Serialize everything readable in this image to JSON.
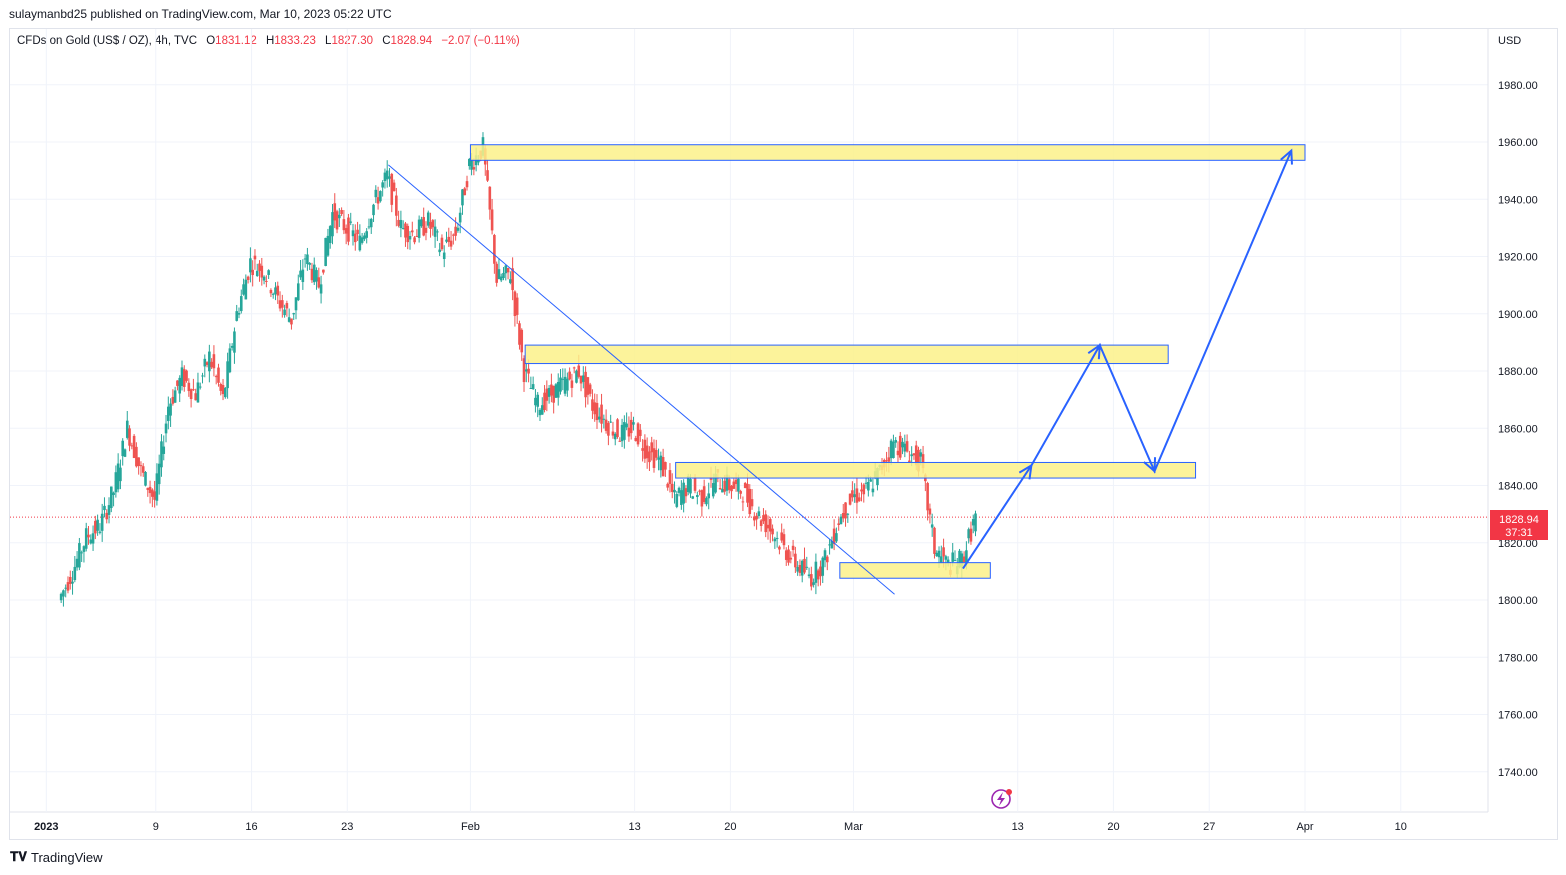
{
  "header": {
    "publisher_text": "sulaymanbd25 published on TradingView.com, Mar 10, 2023 05:22 UTC"
  },
  "legend": {
    "symbol": "CFDs on Gold (US$ / OZ), 4h, TVC",
    "open_label": "O",
    "open": "1831.12",
    "high_label": "H",
    "high": "1833.23",
    "low_label": "L",
    "low": "1827.30",
    "close_label": "C",
    "close": "1828.94",
    "change": "−2.07 (−0.11%)"
  },
  "price_axis": {
    "currency": "USD",
    "last_price": "1828.94",
    "countdown": "37:31"
  },
  "footer": {
    "brand": "TradingView"
  },
  "colors": {
    "up": "#26a69a",
    "down": "#ef5350",
    "zone_fill": "#fbf18a",
    "zone_border": "#2962ff",
    "line": "#2962ff",
    "price_label": "#f23645"
  },
  "chart_data": {
    "type": "candlestick",
    "symbol": "CFDs on Gold (US$ / OZ)",
    "interval": "4h",
    "ylim": [
      1725,
      1990
    ],
    "y_ticks": [
      1740,
      1760,
      1780,
      1800,
      1820,
      1840,
      1860,
      1880,
      1900,
      1920,
      1940,
      1960,
      1980
    ],
    "x_ticks": [
      "2023",
      "9",
      "16",
      "23",
      "Feb",
      "13",
      "20",
      "Mar",
      "13",
      "20",
      "27",
      "Apr",
      "10"
    ],
    "grid": true,
    "last_price": 1828.94,
    "price_path": [
      {
        "date": "2023-01-02",
        "p": 1800
      },
      {
        "date": "2023-01-03",
        "p": 1810
      },
      {
        "date": "2023-01-04",
        "p": 1822
      },
      {
        "date": "2023-01-05",
        "p": 1826
      },
      {
        "date": "2023-01-06",
        "p": 1838
      },
      {
        "date": "2023-01-07",
        "p": 1860
      },
      {
        "date": "2023-01-08",
        "p": 1845
      },
      {
        "date": "2023-01-09",
        "p": 1835
      },
      {
        "date": "2023-01-10",
        "p": 1868
      },
      {
        "date": "2023-01-11",
        "p": 1878
      },
      {
        "date": "2023-01-12",
        "p": 1872
      },
      {
        "date": "2023-01-13",
        "p": 1885
      },
      {
        "date": "2023-01-14",
        "p": 1870
      },
      {
        "date": "2023-01-15",
        "p": 1900
      },
      {
        "date": "2023-01-16",
        "p": 1918
      },
      {
        "date": "2023-01-17",
        "p": 1915
      },
      {
        "date": "2023-01-18",
        "p": 1905
      },
      {
        "date": "2023-01-19",
        "p": 1898
      },
      {
        "date": "2023-01-20",
        "p": 1920
      },
      {
        "date": "2023-01-21",
        "p": 1910
      },
      {
        "date": "2023-01-22",
        "p": 1935
      },
      {
        "date": "2023-01-23",
        "p": 1930
      },
      {
        "date": "2023-01-24",
        "p": 1925
      },
      {
        "date": "2023-01-25",
        "p": 1938
      },
      {
        "date": "2023-01-26",
        "p": 1948
      },
      {
        "date": "2023-01-27",
        "p": 1930
      },
      {
        "date": "2023-01-28",
        "p": 1928
      },
      {
        "date": "2023-01-29",
        "p": 1932
      },
      {
        "date": "2023-01-30",
        "p": 1922
      },
      {
        "date": "2023-01-31",
        "p": 1928
      },
      {
        "date": "2023-02-01",
        "p": 1952
      },
      {
        "date": "2023-02-02",
        "p": 1958
      },
      {
        "date": "2023-02-03",
        "p": 1912
      },
      {
        "date": "2023-02-04",
        "p": 1914
      },
      {
        "date": "2023-02-05",
        "p": 1880
      },
      {
        "date": "2023-02-06",
        "p": 1868
      },
      {
        "date": "2023-02-07",
        "p": 1872
      },
      {
        "date": "2023-02-08",
        "p": 1876
      },
      {
        "date": "2023-02-09",
        "p": 1880
      },
      {
        "date": "2023-02-10",
        "p": 1868
      },
      {
        "date": "2023-02-11",
        "p": 1862
      },
      {
        "date": "2023-02-12",
        "p": 1858
      },
      {
        "date": "2023-02-13",
        "p": 1860
      },
      {
        "date": "2023-02-14",
        "p": 1852
      },
      {
        "date": "2023-02-15",
        "p": 1848
      },
      {
        "date": "2023-02-16",
        "p": 1835
      },
      {
        "date": "2023-02-17",
        "p": 1840
      },
      {
        "date": "2023-02-18",
        "p": 1836
      },
      {
        "date": "2023-02-19",
        "p": 1842
      },
      {
        "date": "2023-02-20",
        "p": 1840
      },
      {
        "date": "2023-02-21",
        "p": 1838
      },
      {
        "date": "2023-02-22",
        "p": 1830
      },
      {
        "date": "2023-02-23",
        "p": 1825
      },
      {
        "date": "2023-02-24",
        "p": 1818
      },
      {
        "date": "2023-02-25",
        "p": 1812
      },
      {
        "date": "2023-02-26",
        "p": 1808
      },
      {
        "date": "2023-02-27",
        "p": 1814
      },
      {
        "date": "2023-02-28",
        "p": 1828
      },
      {
        "date": "2023-03-01",
        "p": 1836
      },
      {
        "date": "2023-03-02",
        "p": 1838
      },
      {
        "date": "2023-03-03",
        "p": 1845
      },
      {
        "date": "2023-03-04",
        "p": 1855
      },
      {
        "date": "2023-03-05",
        "p": 1852
      },
      {
        "date": "2023-03-06",
        "p": 1848
      },
      {
        "date": "2023-03-07",
        "p": 1818
      },
      {
        "date": "2023-03-08",
        "p": 1812
      },
      {
        "date": "2023-03-09",
        "p": 1814
      },
      {
        "date": "2023-03-10",
        "p": 1829
      }
    ],
    "zones": [
      {
        "from": "2023-02-01",
        "to": "2023-04-03",
        "low": 1955,
        "high": 1958
      },
      {
        "from": "2023-02-05",
        "to": "2023-03-24",
        "low": 1884,
        "high": 1888
      },
      {
        "from": "2023-02-16",
        "to": "2023-03-26",
        "low": 1844,
        "high": 1847
      },
      {
        "from": "2023-02-28",
        "to": "2023-03-11",
        "low": 1809,
        "high": 1812
      }
    ],
    "trendline": {
      "from": {
        "date": "2023-01-26",
        "p": 1952
      },
      "to": {
        "date": "2023-03-04",
        "p": 1802
      }
    },
    "projection_path": [
      {
        "date": "2023-03-09",
        "p": 1811
      },
      {
        "date": "2023-03-14",
        "p": 1847
      },
      {
        "date": "2023-03-19",
        "p": 1889
      },
      {
        "date": "2023-03-23",
        "p": 1845
      },
      {
        "date": "2023-04-02",
        "p": 1957
      }
    ]
  }
}
